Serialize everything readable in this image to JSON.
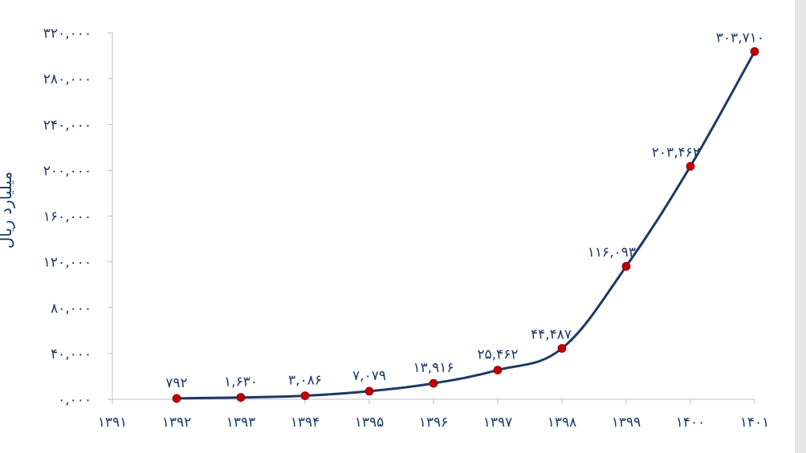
{
  "chart_data": {
    "type": "line",
    "title": "",
    "xlabel": "",
    "ylabel": "میلیارد ریال",
    "x": [
      "۱۳۹۲",
      "۱۳۹۳",
      "۱۳۹۴",
      "۱۳۹۵",
      "۱۳۹۶",
      "۱۳۹۷",
      "۱۳۹۸",
      "۱۳۹۹",
      "۱۴۰۰",
      "۱۴۰۱"
    ],
    "x_ticks": [
      "۱۳۹۱",
      "۱۳۹۲",
      "۱۳۹۳",
      "۱۳۹۴",
      "۱۳۹۵",
      "۱۳۹۶",
      "۱۳۹۷",
      "۱۳۹۸",
      "۱۳۹۹",
      "۱۴۰۰",
      "۱۴۰۱"
    ],
    "values": [
      792,
      1630,
      3086,
      7079,
      13916,
      25462,
      44487,
      116093,
      203462,
      303710
    ],
    "data_labels": [
      "۷۹۲",
      "۱,۶۳۰",
      "۳,۰۸۶",
      "۷,۰۷۹",
      "۱۳,۹۱۶",
      "۲۵,۴۶۲",
      "۴۴,۴۸۷",
      "۱۱۶,۰۹۳",
      "۲۰۳,۴۶۲",
      "۳۰۳,۷۱۰"
    ],
    "y_ticks": [
      0,
      40000,
      80000,
      120000,
      160000,
      200000,
      240000,
      280000,
      320000
    ],
    "y_tick_labels": [
      "۰,۰۰۰",
      "۴۰,۰۰۰",
      "۸۰,۰۰۰",
      "۱۲۰,۰۰۰",
      "۱۶۰,۰۰۰",
      "۲۰۰,۰۰۰",
      "۲۴۰,۰۰۰",
      "۲۸۰,۰۰۰",
      "۳۲۰,۰۰۰"
    ],
    "ylim": [
      0,
      320000
    ],
    "grid": false,
    "legend": "none",
    "colors": {
      "line": "#1f3864",
      "marker": "#c00000",
      "text": "#1f3864",
      "axis": "#bfbfbf"
    }
  }
}
